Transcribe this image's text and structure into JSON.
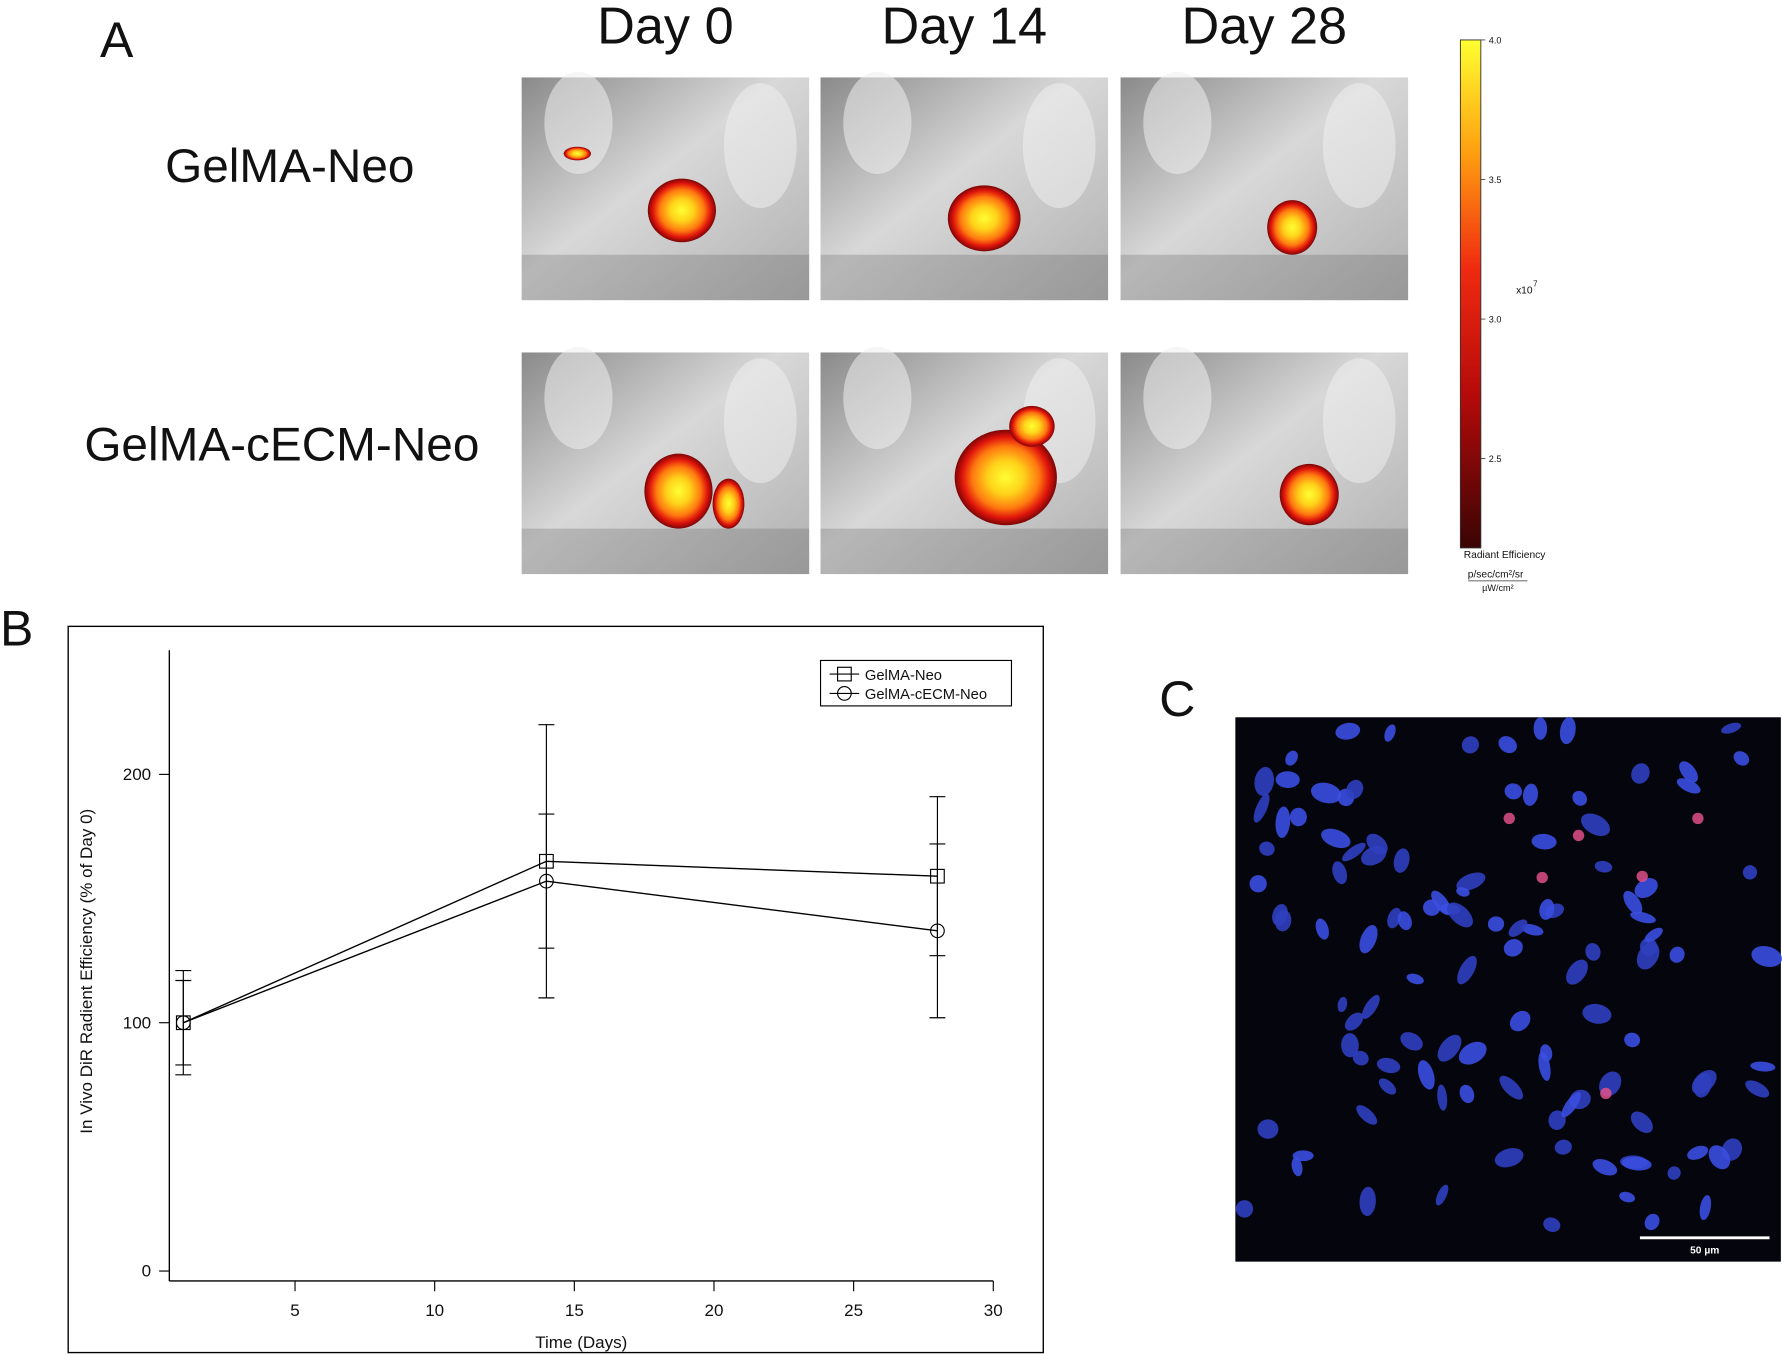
{
  "panel_a": {
    "label": "A",
    "columns": [
      "Day 0",
      "Day 14",
      "Day 28"
    ],
    "rows": [
      "GelMA-Neo",
      "GelMA-cECM-Neo"
    ],
    "colorbar": {
      "lim": [
        2.18,
        4.0
      ],
      "ticks": [
        {
          "value": 4.0,
          "label": "4.0"
        },
        {
          "value": 3.5,
          "label": "3.5"
        },
        {
          "value": 3.0,
          "label": "3.0"
        },
        {
          "value": 2.5,
          "label": "2.5"
        }
      ],
      "multiplier": "x10",
      "exponent": "7",
      "title": "Radiant Efficiency",
      "unit_numerator": "p/sec/cm²/sr",
      "unit_denominator": "µW/cm²"
    }
  },
  "panel_b_label": "B",
  "chart_data": {
    "type": "line",
    "xlabel": "Time (Days)",
    "ylabel": "In Vivo DiR Radient Efficiency (% of Day 0)",
    "x": [
      1,
      14,
      28
    ],
    "xlim": [
      0.5,
      30
    ],
    "xticks": [
      5,
      10,
      15,
      20,
      25,
      30
    ],
    "ylim": [
      -4,
      250
    ],
    "yticks": [
      0,
      100,
      200
    ],
    "series": [
      {
        "name": "GelMA-Neo",
        "color": "#000000",
        "marker": "square",
        "values": [
          100,
          165,
          159
        ],
        "errors": [
          21,
          55,
          32
        ]
      },
      {
        "name": "GelMA-cECM-Neo",
        "color": "#000000",
        "marker": "circle",
        "values": [
          100,
          157,
          137
        ],
        "errors": [
          17,
          27,
          35
        ]
      }
    ],
    "legend": "upper right"
  },
  "panel_c": {
    "label": "C",
    "scale_bar": "50 µm"
  }
}
